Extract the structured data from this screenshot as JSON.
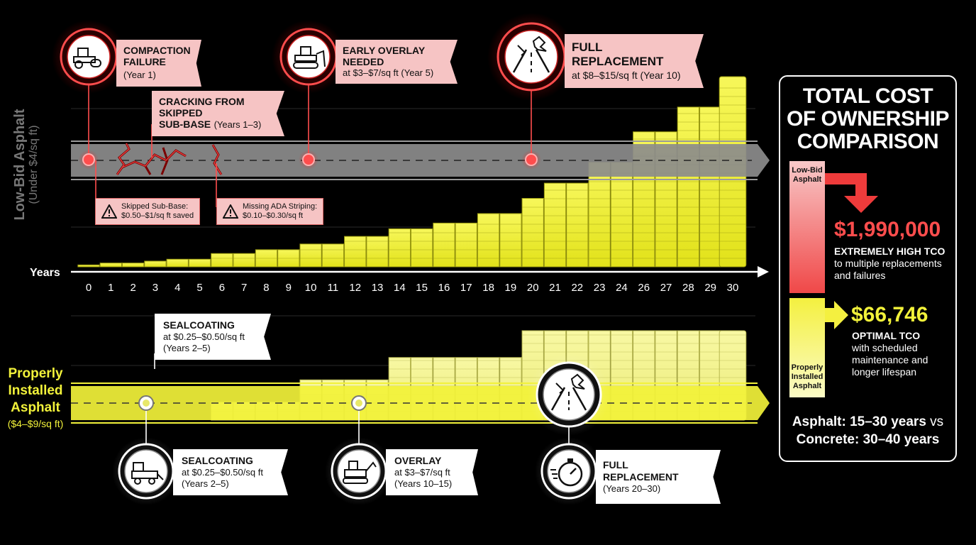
{
  "low_bid": {
    "label": "Low-Bid Asphalt",
    "sub": "(Under $4/sq ft)",
    "events": [
      {
        "title": "COMPACTION",
        "title2": "FAILURE",
        "sub": "(Year 1)",
        "icon": "compactor-icon"
      },
      {
        "title": "EARLY OVERLAY NEEDED",
        "sub": "at $3–$7/sq ft (Year 5)",
        "icon": "bulldozer-icon"
      },
      {
        "title": "FULL REPLACEMENT",
        "sub": "at $8–$15/sq ft (Year 10)",
        "icon": "road-crack-icon"
      }
    ],
    "crack_note": {
      "title": "CRACKING FROM SKIPPED",
      "title2": "SUB-BASE",
      "sub": "(Years 1–3)"
    },
    "warnings": [
      {
        "title": "Skipped Sub-Base:",
        "sub": "$0.50–$1/sq ft saved"
      },
      {
        "title": "Missing ADA Striping:",
        "sub": "$0.10–$0.30/sq ft"
      }
    ]
  },
  "proper": {
    "label_line1": "Properly",
    "label_line2": "Installed",
    "label_line3": "Asphalt",
    "sub": "($4–$9/sq ft)",
    "top_note": {
      "title": "SEALCOATING",
      "sub1": "at $0.25–$0.50/sq ft",
      "sub2": "(Years 2–5)"
    },
    "events": [
      {
        "title": "SEALCOATING",
        "sub1": "at $0.25–$0.50/sq ft",
        "sub2": "(Years 2–5)",
        "icon": "sealcoat-truck-icon"
      },
      {
        "title": "OVERLAY",
        "sub1": "at $3–$7/sq ft",
        "sub2": "(Years 10–15)",
        "icon": "paver-icon"
      },
      {
        "title": "FULL REPLACEMENT",
        "sub1": "(Years 20–30)",
        "sub2": "",
        "icon": "stopwatch-icon"
      }
    ]
  },
  "tco": {
    "title_l1": "TOTAL COST",
    "title_l2": "OF OWNERSHIP",
    "title_l3": "COMPARISON",
    "low_label_l1": "Low-Bid",
    "low_label_l2": "Asphalt",
    "low_value": "$1,990,000",
    "low_head": "EXTREMELY HIGH TCO",
    "low_desc_l1": "to multiple replacements",
    "low_desc_l2": "and failures",
    "proper_label_l1": "Properly",
    "proper_label_l2": "Installed",
    "proper_label_l3": "Asphalt",
    "proper_value": "$66,746",
    "proper_head": "OPTIMAL TCO",
    "proper_desc_l1": "with scheduled",
    "proper_desc_l2": "maintenance and",
    "proper_desc_l3": "longer lifespan",
    "lifespan_l1a": "Asphalt: 15–30 years",
    "lifespan_vs": "vs",
    "lifespan_l2": "Concrete: 30–40 years"
  },
  "chart_data": {
    "type": "bar",
    "xlabel": "Years",
    "ylabel": "",
    "ylim": [
      0,
      100
    ],
    "categories": [
      "0",
      "1",
      "2",
      "3",
      "4",
      "5",
      "6",
      "7",
      "8",
      "9",
      "10",
      "11",
      "12",
      "13",
      "14",
      "15",
      "16",
      "17",
      "18",
      "19",
      "20",
      "21",
      "22",
      "23",
      "24",
      "26",
      "27",
      "28",
      "29",
      "30"
    ],
    "series": [
      {
        "name": "Low-Bid Asphalt",
        "values": [
          1,
          2,
          2,
          3,
          4,
          4,
          7,
          7,
          9,
          9,
          12,
          12,
          16,
          16,
          20,
          20,
          23,
          23,
          28,
          28,
          36,
          44,
          44,
          55,
          55,
          71,
          71,
          84,
          84,
          100
        ]
      },
      {
        "name": "Properly Installed Asphalt",
        "values": [
          0,
          0,
          0,
          0,
          0,
          0,
          20,
          20,
          20,
          20,
          45,
          45,
          45,
          45,
          70,
          70,
          70,
          70,
          70,
          70,
          100,
          100,
          100,
          100,
          100,
          100,
          100,
          100,
          100,
          100
        ]
      }
    ],
    "colors": {
      "low_bar": "#f2f23a",
      "proper_bar": "#f4f48a",
      "accent_red": "#ff4d4d",
      "road_gray": "#9a9a9a"
    }
  }
}
